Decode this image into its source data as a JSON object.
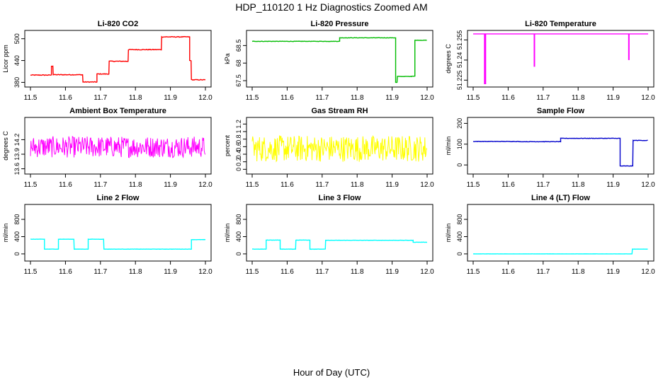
{
  "page": {
    "title": "HDP_110120  1 Hz Diagnostics Zoomed AM",
    "xlabel": "Hour of Day (UTC)"
  },
  "chart_data": [
    {
      "type": "line",
      "title": "Li-820 CO2",
      "ylabel": "Licor ppm",
      "color": "#ff0000",
      "xlim": [
        11.5,
        12.0
      ],
      "ylim": [
        375,
        515
      ],
      "xticks": [
        11.5,
        11.6,
        11.7,
        11.8,
        11.9,
        12.0
      ],
      "yticks": [
        380,
        440,
        500
      ],
      "series": [
        {
          "segments": [
            [
              11.5,
              11.56,
              400
            ],
            [
              11.56,
              11.565,
              425
            ],
            [
              11.565,
              11.65,
              401
            ],
            [
              11.65,
              11.69,
              381
            ],
            [
              11.69,
              11.725,
              403
            ],
            [
              11.725,
              11.78,
              438
            ],
            [
              11.78,
              11.875,
              470
            ],
            [
              11.875,
              11.955,
              505
            ],
            [
              11.955,
              11.96,
              440
            ],
            [
              11.96,
              12.0,
              387
            ]
          ],
          "noise": 2
        }
      ]
    },
    {
      "type": "line",
      "title": "Li-820 Pressure",
      "ylabel": "kPa",
      "color": "#00bb00",
      "xlim": [
        11.5,
        12.0
      ],
      "ylim": [
        67.4,
        68.85
      ],
      "xticks": [
        11.5,
        11.6,
        11.7,
        11.8,
        11.9,
        12.0
      ],
      "yticks": [
        67.5,
        68.0,
        68.5
      ],
      "series": [
        {
          "segments": [
            [
              11.5,
              11.75,
              68.62
            ],
            [
              11.75,
              11.91,
              68.72
            ],
            [
              11.91,
              11.915,
              67.45
            ],
            [
              11.915,
              11.955,
              67.62
            ],
            [
              11.955,
              11.965,
              67.63
            ],
            [
              11.965,
              12.0,
              68.65
            ]
          ],
          "noise": 0.01
        }
      ]
    },
    {
      "type": "line",
      "title": "Li-820 Temperature",
      "ylabel": "degrees C",
      "color": "#ff00ff",
      "xlim": [
        11.5,
        12.0
      ],
      "ylim": [
        51.222,
        51.26
      ],
      "xticks": [
        11.5,
        11.6,
        11.7,
        11.8,
        11.9,
        12.0
      ],
      "yticks": [
        51.225,
        51.24,
        51.255
      ],
      "series": [
        {
          "segments": [
            [
              11.5,
              12.0,
              51.2595
            ]
          ],
          "spikes": [
            [
              11.533,
              51.222
            ],
            [
              11.535,
              51.222
            ],
            [
              11.675,
              51.235
            ],
            [
              11.945,
              51.24
            ]
          ],
          "noise": 0
        }
      ]
    },
    {
      "type": "line",
      "title": "Ambient Box Temperature",
      "ylabel": "degrees C",
      "color": "#ff00ff",
      "xlim": [
        11.5,
        12.0
      ],
      "ylim": [
        13.55,
        14.6
      ],
      "xticks": [
        11.5,
        11.6,
        11.7,
        11.8,
        11.9,
        12.0
      ],
      "yticks": [
        13.6,
        13.9,
        14.2
      ],
      "series": [
        {
          "segments": [
            [
              11.5,
              12.0,
              14.05
            ]
          ],
          "noise": 0.22,
          "dense": true
        }
      ]
    },
    {
      "type": "line",
      "title": "Gas Stream RH",
      "ylabel": "percent",
      "color": "#ffff00",
      "xlim": [
        11.5,
        12.0
      ],
      "ylim": [
        -0.05,
        1.3
      ],
      "xticks": [
        11.5,
        11.6,
        11.7,
        11.8,
        11.9,
        12.0
      ],
      "yticks": [
        0.0,
        0.2,
        0.4,
        0.6,
        0.8,
        1.0,
        1.2
      ],
      "series": [
        {
          "segments": [
            [
              11.5,
              12.0,
              0.55
            ]
          ],
          "noise": 0.35,
          "dense": true
        }
      ]
    },
    {
      "type": "line",
      "title": "Sample Flow",
      "ylabel": "ml/min",
      "color": "#0000cc",
      "xlim": [
        11.5,
        12.0
      ],
      "ylim": [
        -30,
        215
      ],
      "xticks": [
        11.5,
        11.6,
        11.7,
        11.8,
        11.9,
        12.0
      ],
      "yticks": [
        0,
        100,
        200
      ],
      "series": [
        {
          "segments": [
            [
              11.5,
              11.63,
              113
            ],
            [
              11.63,
              11.75,
              112
            ],
            [
              11.75,
              11.92,
              128
            ],
            [
              11.92,
              11.957,
              -5
            ],
            [
              11.957,
              12.0,
              118
            ]
          ],
          "noise": 2
        }
      ]
    },
    {
      "type": "line",
      "title": "Line 2 Flow",
      "ylabel": "ml/min",
      "color": "#00ffff",
      "xlim": [
        11.5,
        12.0
      ],
      "ylim": [
        -100,
        1080
      ],
      "xticks": [
        11.5,
        11.6,
        11.7,
        11.8,
        11.9,
        12.0
      ],
      "yticks": [
        0,
        400,
        800
      ],
      "series": [
        {
          "segments": [
            [
              11.5,
              11.54,
              340
            ],
            [
              11.54,
              11.58,
              110
            ],
            [
              11.58,
              11.625,
              340
            ],
            [
              11.625,
              11.665,
              110
            ],
            [
              11.665,
              11.71,
              340
            ],
            [
              11.71,
              11.96,
              110
            ],
            [
              11.96,
              12.0,
              330
            ]
          ],
          "noise": 5
        }
      ]
    },
    {
      "type": "line",
      "title": "Line 3 Flow",
      "ylabel": "ml/min",
      "color": "#00ffff",
      "xlim": [
        11.5,
        12.0
      ],
      "ylim": [
        -100,
        1080
      ],
      "xticks": [
        11.5,
        11.6,
        11.7,
        11.8,
        11.9,
        12.0
      ],
      "yticks": [
        0,
        400,
        800
      ],
      "series": [
        {
          "segments": [
            [
              11.5,
              11.54,
              110
            ],
            [
              11.54,
              11.58,
              320
            ],
            [
              11.58,
              11.625,
              110
            ],
            [
              11.625,
              11.665,
              320
            ],
            [
              11.665,
              11.71,
              110
            ],
            [
              11.71,
              11.96,
              315
            ],
            [
              11.96,
              12.0,
              270
            ]
          ],
          "noise": 6
        }
      ]
    },
    {
      "type": "line",
      "title": "Line 4 (LT) Flow",
      "ylabel": "ml/min",
      "color": "#00ffff",
      "xlim": [
        11.5,
        12.0
      ],
      "ylim": [
        -100,
        1080
      ],
      "xticks": [
        11.5,
        11.6,
        11.7,
        11.8,
        11.9,
        12.0
      ],
      "yticks": [
        0,
        400,
        800
      ],
      "series": [
        {
          "segments": [
            [
              11.5,
              11.955,
              0
            ],
            [
              11.955,
              12.0,
              110
            ]
          ],
          "noise": 2
        }
      ]
    }
  ]
}
